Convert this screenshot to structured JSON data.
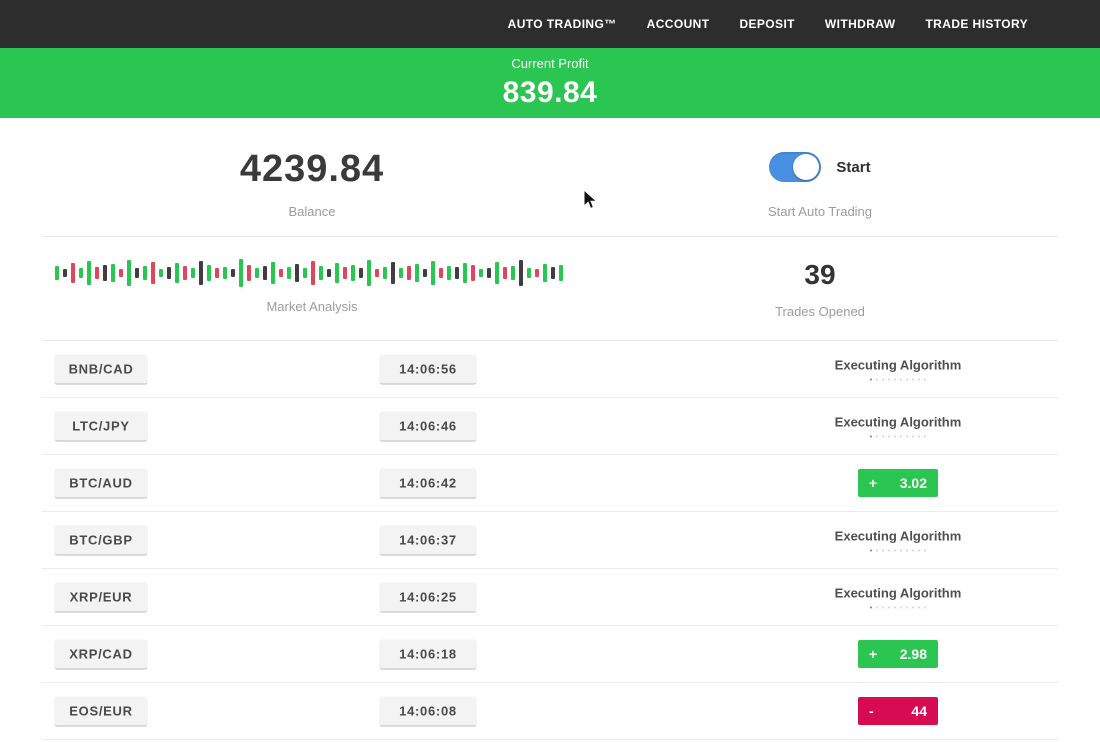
{
  "nav": {
    "items": [
      "AUTO TRADING™",
      "ACCOUNT",
      "DEPOSIT",
      "WITHDRAW",
      "TRADE HISTORY"
    ]
  },
  "banner": {
    "label": "Current Profit",
    "value": "839.84"
  },
  "stats": {
    "balance_value": "4239.84",
    "balance_label": "Balance",
    "toggle_label": "Start",
    "toggle_state": "on",
    "toggle_sublabel": "Start Auto Trading",
    "market_analysis_label": "Market Analysis",
    "trades_opened_value": "39",
    "trades_opened_label": "Trades Opened"
  },
  "market_analysis": {
    "bars": [
      "g14",
      "d8",
      "r20",
      "g10",
      "g24",
      "r12",
      "d16",
      "g18",
      "r8",
      "g26",
      "d10",
      "g14",
      "r22",
      "g8",
      "d12",
      "g20",
      "r14",
      "g10",
      "d24",
      "g16",
      "r10",
      "g12",
      "d8",
      "g28",
      "r16",
      "g10",
      "d14",
      "g22",
      "r8",
      "g12",
      "d18",
      "g10",
      "r24",
      "g14",
      "d8",
      "g20",
      "r12",
      "g16",
      "d10",
      "g26",
      "r8",
      "g12",
      "d22",
      "g10",
      "r14",
      "g18",
      "d8",
      "g24",
      "r10",
      "g14",
      "d12",
      "g20",
      "r16",
      "g8",
      "d10",
      "g22",
      "r12",
      "g14",
      "d26",
      "g10",
      "r8",
      "g18",
      "d12",
      "g16"
    ]
  },
  "trades": [
    {
      "pair": "BNB/CAD",
      "time": "14:06:56",
      "status": {
        "type": "executing",
        "label": "Executing Algorithm"
      }
    },
    {
      "pair": "LTC/JPY",
      "time": "14:06:46",
      "status": {
        "type": "executing",
        "label": "Executing Algorithm"
      }
    },
    {
      "pair": "BTC/AUD",
      "time": "14:06:42",
      "status": {
        "type": "profit",
        "sign": "+",
        "value": "3.02"
      }
    },
    {
      "pair": "BTC/GBP",
      "time": "14:06:37",
      "status": {
        "type": "executing",
        "label": "Executing Algorithm"
      }
    },
    {
      "pair": "XRP/EUR",
      "time": "14:06:25",
      "status": {
        "type": "executing",
        "label": "Executing Algorithm"
      }
    },
    {
      "pair": "XRP/CAD",
      "time": "14:06:18",
      "status": {
        "type": "profit",
        "sign": "+",
        "value": "2.98"
      }
    },
    {
      "pair": "EOS/EUR",
      "time": "14:06:08",
      "status": {
        "type": "loss",
        "sign": "-",
        "value": "44"
      }
    }
  ],
  "colors": {
    "green": "#2bc552",
    "red": "#d60b52",
    "toggle_blue": "#4a90e2",
    "nav_bg": "#2d2d2d"
  }
}
